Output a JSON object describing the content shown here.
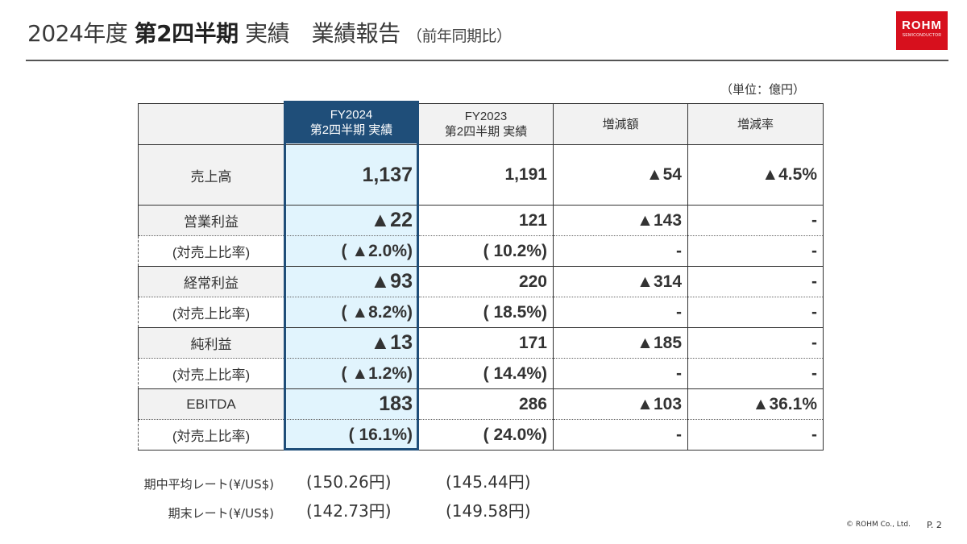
{
  "header": {
    "title_year": "2024年度",
    "title_bold": "第2四半期",
    "title_mid": "実績　業績報告",
    "title_sub": "（前年同期比）"
  },
  "logo": {
    "brand": "ROHM",
    "tagline": "SEMICONDUCTOR",
    "color": "#d7101d"
  },
  "unit_note": "（単位：億円）",
  "table": {
    "columns": [
      {
        "line1": "FY2024",
        "line2": "第2四半期 実績"
      },
      {
        "line1": "FY2023",
        "line2": "第2四半期 実績"
      },
      {
        "line1": "増減額",
        "line2": ""
      },
      {
        "line1": "増減率",
        "line2": ""
      }
    ],
    "rows": [
      {
        "label": "売上高",
        "fy2024": "1,137",
        "fy2023": "1,191",
        "diff": "▲54",
        "rate": "▲4.5%"
      },
      {
        "label": "営業利益",
        "fy2024": "▲22",
        "fy2023": "121",
        "diff": "▲143",
        "rate": "-",
        "sub_label": "(対売上比率)",
        "sub_fy2024": "( ▲2.0%)",
        "sub_fy2023": "( 10.2%)",
        "sub_diff": "-",
        "sub_rate": "-"
      },
      {
        "label": "経常利益",
        "fy2024": "▲93",
        "fy2023": "220",
        "diff": "▲314",
        "rate": "-",
        "sub_label": "(対売上比率)",
        "sub_fy2024": "( ▲8.2%)",
        "sub_fy2023": "( 18.5%)",
        "sub_diff": "-",
        "sub_rate": "-"
      },
      {
        "label": "純利益",
        "fy2024": "▲13",
        "fy2023": "171",
        "diff": "▲185",
        "rate": "-",
        "sub_label": "(対売上比率)",
        "sub_fy2024": "( ▲1.2%)",
        "sub_fy2023": "( 14.4%)",
        "sub_diff": "-",
        "sub_rate": "-"
      },
      {
        "label": "EBITDA",
        "fy2024": "183",
        "fy2023": "286",
        "diff": "▲103",
        "rate": "▲36.1%",
        "sub_label": "(対売上比率)",
        "sub_fy2024": "( 16.1%)",
        "sub_fy2023": "( 24.0%)",
        "sub_diff": "-",
        "sub_rate": "-"
      }
    ],
    "highlight_color": "#1f4e79",
    "highlight_fill": "#e1f4fd"
  },
  "rates": [
    {
      "label": "期中平均レート(¥/US$)",
      "fy2024": "(150.26円)",
      "fy2023": "(145.44円)"
    },
    {
      "label": "期末レート(¥/US$)",
      "fy2024": "(142.73円)",
      "fy2023": "(149.58円)"
    }
  ],
  "footer": {
    "copyright": "© ROHM Co., Ltd.",
    "page": "P. 2"
  }
}
